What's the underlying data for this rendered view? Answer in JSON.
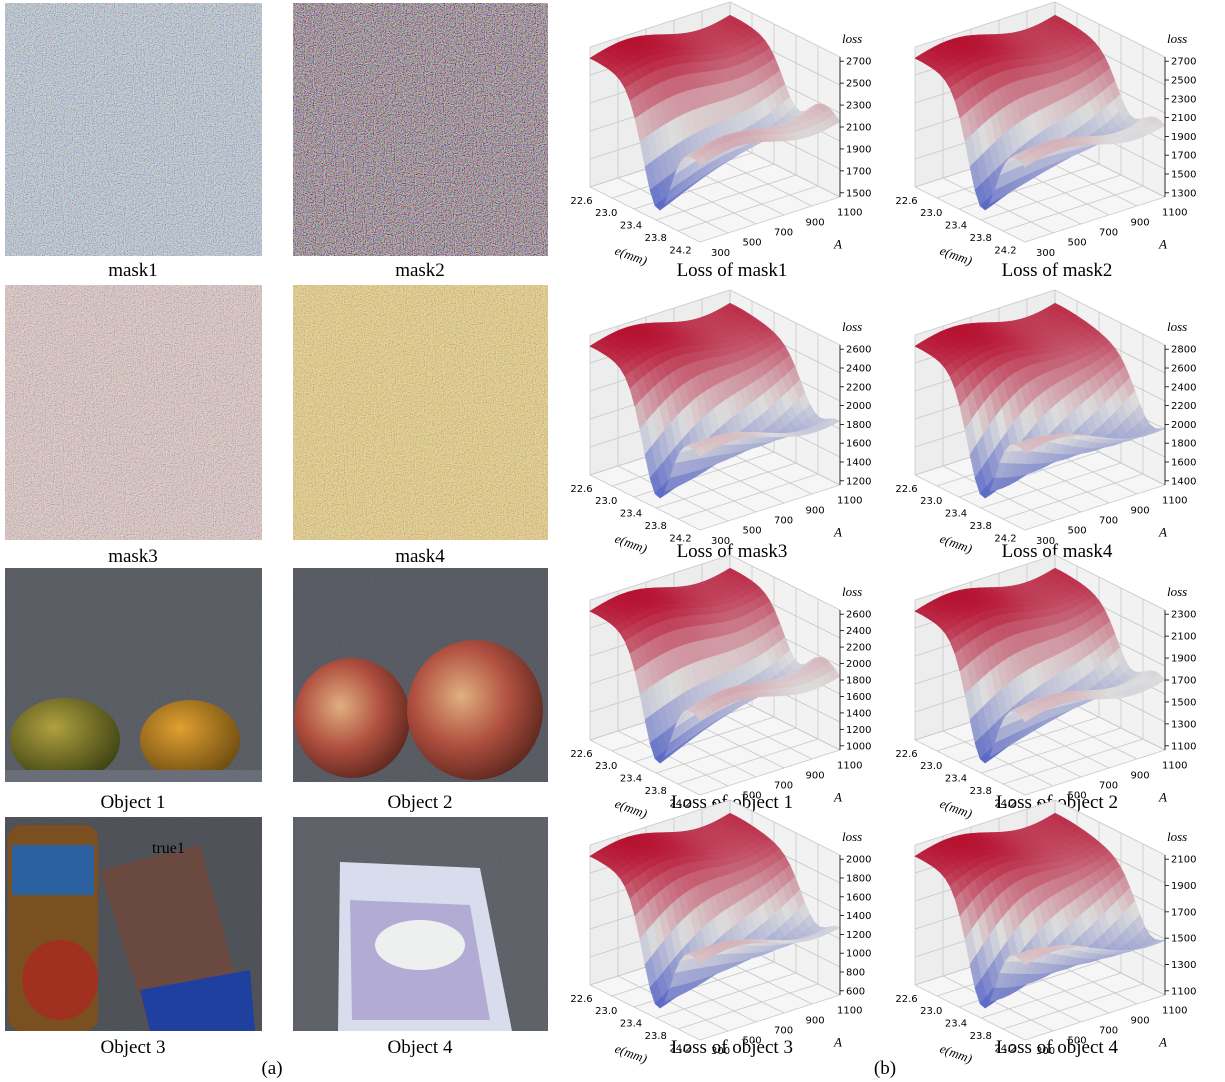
{
  "panel_a": {
    "label": "(a)",
    "images": [
      {
        "caption": "mask1"
      },
      {
        "caption": "mask2"
      },
      {
        "caption": "mask3"
      },
      {
        "caption": "mask4"
      },
      {
        "caption": "Object 1"
      },
      {
        "caption": "Object 2"
      },
      {
        "caption": "Object 3",
        "overlay_text": "true1"
      },
      {
        "caption": "Object 4"
      }
    ]
  },
  "panel_b": {
    "label": "(b)",
    "plots": [
      {
        "caption": "Loss of mask1",
        "zlabel": "loss",
        "xlabel": "e(mm)",
        "ylabel": "A",
        "xticks": [
          "22.6",
          "23.0",
          "23.4",
          "23.8",
          "24.2"
        ],
        "yticks": [
          "300",
          "500",
          "700",
          "900",
          "1100"
        ],
        "zticks": [
          "1500",
          "1700",
          "1900",
          "2100",
          "2300",
          "2500",
          "2700"
        ]
      },
      {
        "caption": "Loss of mask2",
        "zlabel": "loss",
        "xlabel": "e(mm)",
        "ylabel": "A",
        "xticks": [
          "22.6",
          "23.0",
          "23.4",
          "23.8",
          "24.2"
        ],
        "yticks": [
          "300",
          "500",
          "700",
          "900",
          "1100"
        ],
        "zticks": [
          "1300",
          "1500",
          "1700",
          "1900",
          "2100",
          "2300",
          "2500",
          "2700"
        ]
      },
      {
        "caption": "Loss of mask3",
        "zlabel": "loss",
        "xlabel": "e(mm)",
        "ylabel": "A",
        "xticks": [
          "22.6",
          "23.0",
          "23.4",
          "23.8",
          "24.2"
        ],
        "yticks": [
          "300",
          "500",
          "700",
          "900",
          "1100"
        ],
        "zticks": [
          "1200",
          "1400",
          "1600",
          "1800",
          "2000",
          "2200",
          "2400",
          "2600"
        ]
      },
      {
        "caption": "Loss of mask4",
        "zlabel": "loss",
        "xlabel": "e(mm)",
        "ylabel": "A",
        "xticks": [
          "22.6",
          "23.0",
          "23.4",
          "23.8",
          "24.2"
        ],
        "yticks": [
          "300",
          "500",
          "700",
          "900",
          "1100"
        ],
        "zticks": [
          "1400",
          "1600",
          "1800",
          "2000",
          "2200",
          "2400",
          "2600",
          "2800"
        ]
      },
      {
        "caption": "Loss of object 1",
        "zlabel": "loss",
        "xlabel": "e(mm)",
        "ylabel": "A",
        "xticks": [
          "22.6",
          "23.0",
          "23.4",
          "23.8",
          "24.2"
        ],
        "yticks": [
          "300",
          "500",
          "700",
          "900",
          "1100"
        ],
        "zticks": [
          "1000",
          "1200",
          "1400",
          "1600",
          "1800",
          "2000",
          "2200",
          "2400",
          "2600"
        ]
      },
      {
        "caption": "Loss of object 2",
        "zlabel": "loss",
        "xlabel": "e(mm)",
        "ylabel": "A",
        "xticks": [
          "22.6",
          "23.0",
          "23.4",
          "23.8",
          "24.2"
        ],
        "yticks": [
          "300",
          "500",
          "700",
          "900",
          "1100"
        ],
        "zticks": [
          "1100",
          "1300",
          "1500",
          "1700",
          "1900",
          "2100",
          "2300"
        ]
      },
      {
        "caption": "Loss of object 3",
        "zlabel": "loss",
        "xlabel": "e(mm)",
        "ylabel": "A",
        "xticks": [
          "22.6",
          "23.0",
          "23.4",
          "23.8",
          "24.2"
        ],
        "yticks": [
          "300",
          "500",
          "700",
          "900",
          "1100"
        ],
        "zticks": [
          "600",
          "800",
          "1000",
          "1200",
          "1400",
          "1600",
          "1800",
          "2000"
        ]
      },
      {
        "caption": "Loss of object 4",
        "zlabel": "loss",
        "xlabel": "e(mm)",
        "ylabel": "A",
        "xticks": [
          "22.6",
          "23.0",
          "23.4",
          "23.8",
          "24.2"
        ],
        "yticks": [
          "300",
          "500",
          "700",
          "900",
          "1100"
        ],
        "zticks": [
          "1100",
          "1300",
          "1500",
          "1700",
          "1900",
          "2100"
        ]
      }
    ]
  }
}
